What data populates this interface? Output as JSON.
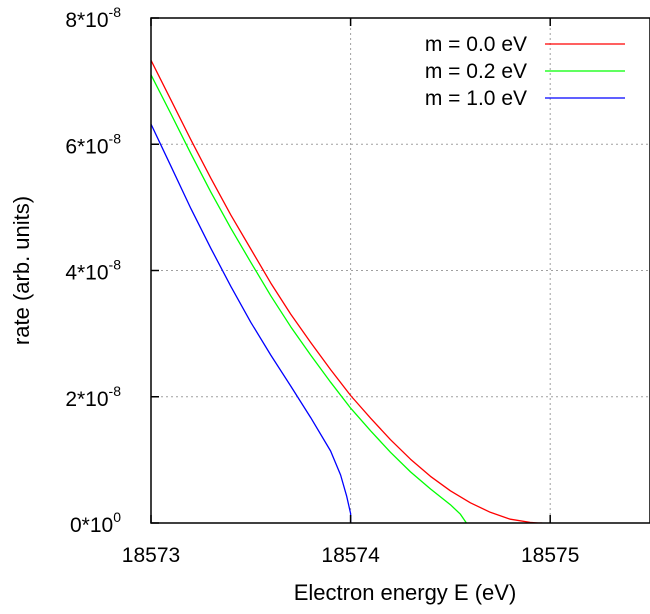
{
  "chart_data": {
    "type": "line",
    "title": "",
    "xlabel": "Electron energy E (eV)",
    "ylabel": "rate (arb. units)",
    "xlim": [
      18573,
      18575.5
    ],
    "ylim": [
      0,
      8e-08
    ],
    "grid": true,
    "legend_position": "top-right",
    "x_ticks": [
      {
        "value": 18573,
        "label": "18573"
      },
      {
        "value": 18574,
        "label": "18574"
      },
      {
        "value": 18575,
        "label": "18575"
      }
    ],
    "y_ticks": [
      {
        "value": 0,
        "mantissa": "0*10",
        "exp": "0"
      },
      {
        "value": 2e-08,
        "mantissa": "2*10",
        "exp": "-8"
      },
      {
        "value": 4e-08,
        "mantissa": "4*10",
        "exp": "-8"
      },
      {
        "value": 6e-08,
        "mantissa": "6*10",
        "exp": "-8"
      },
      {
        "value": 8e-08,
        "mantissa": "8*10",
        "exp": "-8"
      }
    ],
    "series": [
      {
        "name": "m = 0.0 eV",
        "color": "#ff0000",
        "x": [
          18573.0,
          18573.1,
          18573.2,
          18573.3,
          18573.4,
          18573.5,
          18573.6,
          18573.7,
          18573.8,
          18573.9,
          18574.0,
          18574.1,
          18574.2,
          18574.3,
          18574.4,
          18574.5,
          18574.6,
          18574.7,
          18574.8,
          18574.9,
          18574.94,
          18574.96
        ],
        "y": [
          7.33e-08,
          6.7e-08,
          6.07e-08,
          5.46e-08,
          4.88e-08,
          4.34e-08,
          3.8e-08,
          3.31e-08,
          2.86e-08,
          2.43e-08,
          2.02e-08,
          1.66e-08,
          1.32e-08,
          1.01e-08,
          7.4e-09,
          5.1e-09,
          3.2e-09,
          1.7e-09,
          6e-10,
          1e-10,
          0,
          0
        ]
      },
      {
        "name": "m = 0.2 eV",
        "color": "#00ff00",
        "x": [
          18573.0,
          18573.1,
          18573.2,
          18573.3,
          18573.4,
          18573.5,
          18573.6,
          18573.7,
          18573.8,
          18573.9,
          18574.0,
          18574.1,
          18574.2,
          18574.3,
          18574.4,
          18574.5,
          18574.55,
          18574.58
        ],
        "y": [
          7.1e-08,
          6.48e-08,
          5.85e-08,
          5.24e-08,
          4.67e-08,
          4.13e-08,
          3.6e-08,
          3.11e-08,
          2.66e-08,
          2.23e-08,
          1.82e-08,
          1.46e-08,
          1.12e-08,
          8.1e-09,
          5.4e-09,
          2.9e-09,
          1.4e-09,
          0
        ]
      },
      {
        "name": "m = 1.0 eV",
        "color": "#0000ff",
        "x": [
          18573.0,
          18573.1,
          18573.2,
          18573.3,
          18573.4,
          18573.5,
          18573.6,
          18573.7,
          18573.8,
          18573.9,
          18573.95,
          18573.98,
          18574.0,
          18574.0
        ],
        "y": [
          6.32e-08,
          5.65e-08,
          4.98e-08,
          4.35e-08,
          3.75e-08,
          3.18e-08,
          2.66e-08,
          2.17e-08,
          1.67e-08,
          1.14e-08,
          7.6e-09,
          4.3e-09,
          1.5e-09,
          0
        ]
      }
    ]
  }
}
